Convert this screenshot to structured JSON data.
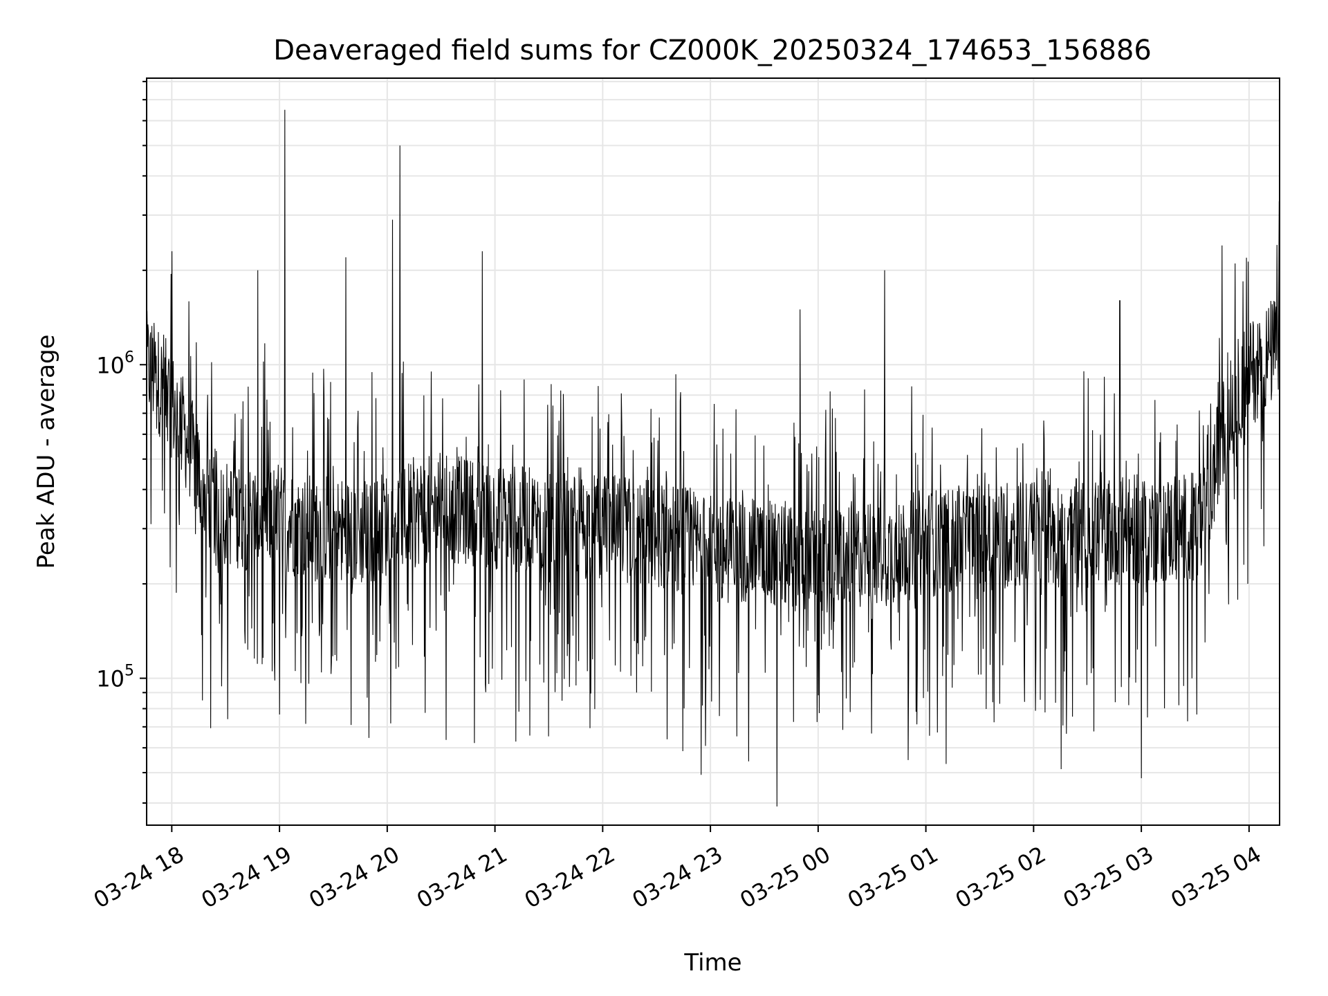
{
  "chart_data": {
    "type": "line",
    "title": "Deaveraged field sums for CZ000K_20250324_174653_156886",
    "xlabel": "Time",
    "ylabel": "Peak ADU - average",
    "yscale": "log",
    "xlim": [
      "2025-03-24 17:46",
      "2025-03-25 04:17"
    ],
    "ylim": [
      34000,
      8200000
    ],
    "x_ticks": [
      "03-24 18",
      "03-24 19",
      "03-24 20",
      "03-24 21",
      "03-24 22",
      "03-24 23",
      "03-25 00",
      "03-25 01",
      "03-25 02",
      "03-25 03",
      "03-25 04"
    ],
    "y_ticks": [
      {
        "base": "10",
        "exp": "5",
        "value": 100000
      },
      {
        "base": "10",
        "exp": "6",
        "value": 1000000
      }
    ],
    "grid": true,
    "line_color": "#000000",
    "series": [
      {
        "x": [
          "2025-03-24 17:46",
          "2025-03-24 17:55",
          "2025-03-24 18:00",
          "2025-03-24 18:05",
          "2025-03-24 18:10",
          "2025-03-24 18:15",
          "2025-03-24 18:20",
          "2025-03-24 18:30",
          "2025-03-24 18:40",
          "2025-03-24 18:50",
          "2025-03-24 19:00",
          "2025-03-24 19:15",
          "2025-03-24 19:30",
          "2025-03-24 19:45",
          "2025-03-24 20:00",
          "2025-03-24 20:15",
          "2025-03-24 20:30",
          "2025-03-24 20:45",
          "2025-03-24 21:00",
          "2025-03-24 21:30",
          "2025-03-24 22:00",
          "2025-03-24 22:30",
          "2025-03-24 23:00",
          "2025-03-24 23:30",
          "2025-03-25 00:00",
          "2025-03-25 00:30",
          "2025-03-25 01:00",
          "2025-03-25 01:30",
          "2025-03-25 02:00",
          "2025-03-25 02:30",
          "2025-03-25 03:00",
          "2025-03-25 03:20",
          "2025-03-25 03:35",
          "2025-03-25 03:45",
          "2025-03-25 03:55",
          "2025-03-25 04:05",
          "2025-03-25 04:17"
        ],
        "y": [
          1000000,
          850000,
          750000,
          650000,
          550000,
          450000,
          380000,
          340000,
          330000,
          320000,
          330000,
          300000,
          300000,
          290000,
          310000,
          340000,
          350000,
          340000,
          330000,
          310000,
          300000,
          290000,
          260000,
          250000,
          240000,
          250000,
          270000,
          280000,
          290000,
          290000,
          300000,
          300000,
          310000,
          600000,
          850000,
          1000000,
          1150000
        ],
        "spikes": [
          {
            "x": "2025-03-24 18:00",
            "y": 2300000
          },
          {
            "x": "2025-03-24 19:03",
            "y": 6500000
          },
          {
            "x": "2025-03-24 20:07",
            "y": 5000000
          },
          {
            "x": "2025-03-24 20:03",
            "y": 2900000
          },
          {
            "x": "2025-03-24 20:53",
            "y": 2300000
          },
          {
            "x": "2025-03-24 19:37",
            "y": 2200000
          },
          {
            "x": "2025-03-24 18:48",
            "y": 2000000
          },
          {
            "x": "2025-03-25 00:37",
            "y": 2000000
          },
          {
            "x": "2025-03-25 03:45",
            "y": 2400000
          },
          {
            "x": "2025-03-25 02:48",
            "y": 1600000
          },
          {
            "x": "2025-03-24 23:50",
            "y": 1500000
          },
          {
            "x": "2025-03-24 23:37",
            "y": 39000
          },
          {
            "x": "2025-03-24 18:17",
            "y": 85000
          },
          {
            "x": "2025-03-25 03:00",
            "y": 48000
          }
        ]
      }
    ]
  }
}
